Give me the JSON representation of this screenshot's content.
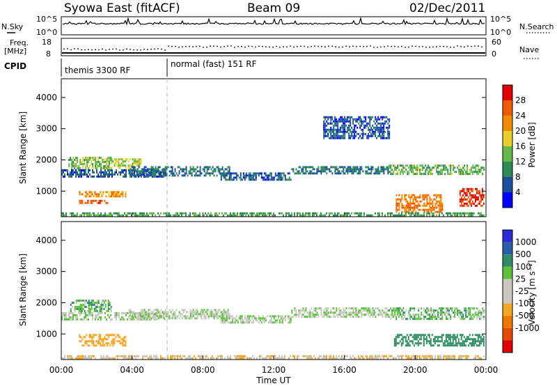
{
  "header": {
    "title": "Syowa East (fitACF)",
    "beam": "Beam 09",
    "date": "02/Dec/2011"
  },
  "top_panel": {
    "left_label": "N.Sky",
    "right_label": "N.Search",
    "left_ticks": [
      "10^5",
      "10^0"
    ],
    "right_ticks": [
      "10^5",
      "10^0"
    ]
  },
  "freq_panel": {
    "left_label_line1": "Freq.",
    "left_label_line2": "[MHz]",
    "right_label": "Nave",
    "left_ticks": [
      "18",
      "8"
    ],
    "right_ticks": [
      "60",
      "0"
    ]
  },
  "cpid": {
    "label": "CPID",
    "segments": [
      {
        "start_hour": 0,
        "text": "themis 3300 RF"
      },
      {
        "start_hour": 6,
        "text": "normal (fast) 151 RF"
      }
    ]
  },
  "x_axis": {
    "label": "Time UT",
    "ticks": [
      "00:00",
      "04:00",
      "08:00",
      "12:00",
      "16:00",
      "20:00",
      "00:00"
    ],
    "range_hours": [
      0,
      24
    ]
  },
  "colors": {
    "power_scale": [
      "#0000ff",
      "#1a4f9c",
      "#2e8b57",
      "#66b94a",
      "#e9cf2a",
      "#f08c00",
      "#f05a00",
      "#e00000"
    ],
    "velocity_scale": [
      "#2b2bd9",
      "#2a5fa8",
      "#2e8b66",
      "#5cc03a",
      "#c8c8c0",
      "#c8c8c0",
      "#f5a623",
      "#f07800",
      "#e64a00",
      "#e00000"
    ]
  },
  "chart_data": [
    {
      "type": "heatmap",
      "name": "power",
      "ylabel": "Slant Range [km]",
      "xlabel": "",
      "ylim": [
        180,
        4600
      ],
      "yticks": [
        "1000",
        "2000",
        "3000",
        "4000"
      ],
      "ytick_values": [
        1000,
        2000,
        3000,
        4000
      ],
      "colorbar_label": "Power [dB]",
      "colorbar_ticks": [
        "4",
        "8",
        "12",
        "16",
        "20",
        "24",
        "28"
      ],
      "colorbar_range": [
        0,
        32
      ],
      "regions": [
        {
          "x": [
            0.0,
            5.9
          ],
          "y": [
            1450,
            1700
          ],
          "value": 6
        },
        {
          "x": [
            0.4,
            2.8
          ],
          "y": [
            1700,
            2100
          ],
          "value": 14
        },
        {
          "x": [
            1.0,
            3.6
          ],
          "y": [
            800,
            1000
          ],
          "value": 22
        },
        {
          "x": [
            1.0,
            2.6
          ],
          "y": [
            600,
            720
          ],
          "value": 26
        },
        {
          "x": [
            2.5,
            4.5
          ],
          "y": [
            1750,
            2050
          ],
          "value": 16
        },
        {
          "x": [
            3.8,
            9.5
          ],
          "y": [
            1500,
            1800
          ],
          "value": 8
        },
        {
          "x": [
            9.0,
            13.0
          ],
          "y": [
            1350,
            1600
          ],
          "value": 7
        },
        {
          "x": [
            13.0,
            18.5
          ],
          "y": [
            1550,
            1800
          ],
          "value": 8
        },
        {
          "x": [
            14.8,
            18.5
          ],
          "y": [
            2700,
            3400
          ],
          "value": 6
        },
        {
          "x": [
            18.5,
            23.9
          ],
          "y": [
            1550,
            1850
          ],
          "value": 13
        },
        {
          "x": [
            18.9,
            21.5
          ],
          "y": [
            300,
            900
          ],
          "value": 24
        },
        {
          "x": [
            22.5,
            23.9
          ],
          "y": [
            500,
            1100
          ],
          "value": 28
        },
        {
          "x": [
            0.0,
            23.9
          ],
          "y": [
            200,
            320
          ],
          "value": 12
        }
      ]
    },
    {
      "type": "heatmap",
      "name": "velocity",
      "ylabel": "Slant Range [km]",
      "xlabel": "Time UT",
      "ylim": [
        180,
        4600
      ],
      "yticks": [
        "1000",
        "2000",
        "3000",
        "4000"
      ],
      "ytick_values": [
        1000,
        2000,
        3000,
        4000
      ],
      "colorbar_label": "Velocity [m s⁻¹]",
      "colorbar_ticks": [
        "1000",
        "500",
        "100",
        "25",
        "-25",
        "-100",
        "-500",
        "-1000"
      ],
      "regions": [
        {
          "x": [
            0.0,
            5.9
          ],
          "y": [
            1450,
            1700
          ],
          "value": 0
        },
        {
          "x": [
            0.5,
            2.8
          ],
          "y": [
            1700,
            2100
          ],
          "value": 80
        },
        {
          "x": [
            1.0,
            3.6
          ],
          "y": [
            650,
            1000
          ],
          "value": -300
        },
        {
          "x": [
            3.8,
            9.5
          ],
          "y": [
            1500,
            1800
          ],
          "value": 0
        },
        {
          "x": [
            9.0,
            13.0
          ],
          "y": [
            1350,
            1600
          ],
          "value": 0
        },
        {
          "x": [
            13.0,
            18.5
          ],
          "y": [
            1550,
            1850
          ],
          "value": 0
        },
        {
          "x": [
            18.8,
            23.9
          ],
          "y": [
            600,
            1000
          ],
          "value": 300
        },
        {
          "x": [
            18.5,
            23.9
          ],
          "y": [
            1500,
            1850
          ],
          "value": 60
        },
        {
          "x": [
            0.0,
            23.9
          ],
          "y": [
            200,
            320
          ],
          "value": -80
        }
      ]
    }
  ]
}
